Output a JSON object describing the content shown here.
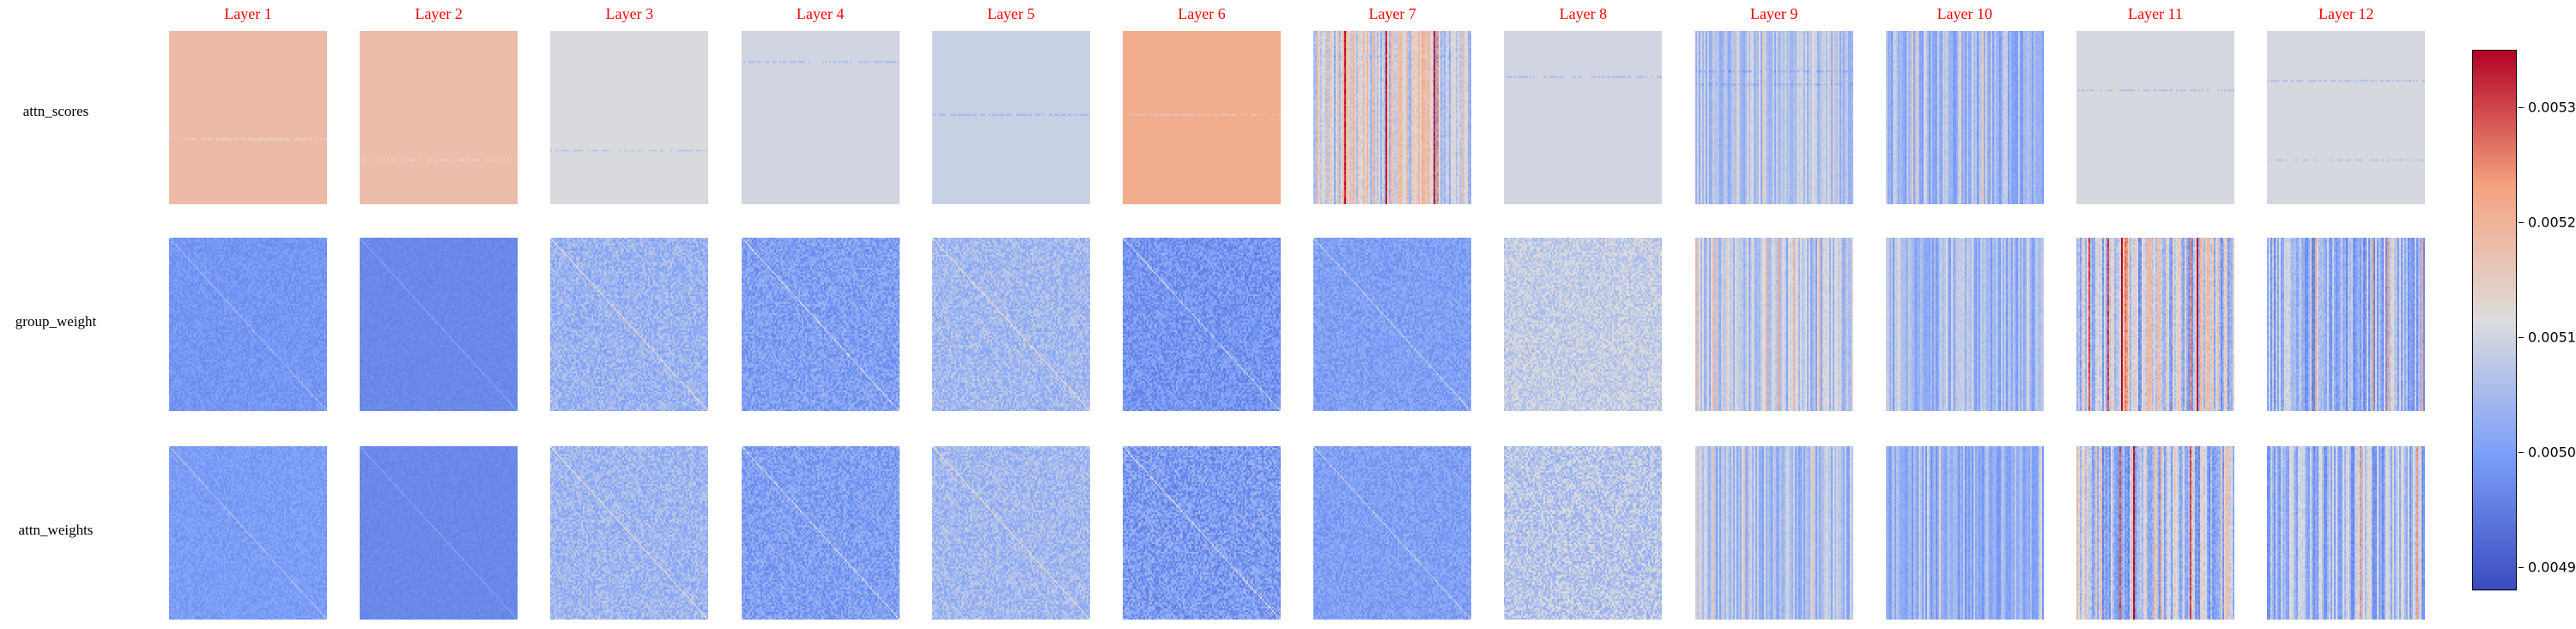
{
  "chart_data": {
    "type": "heatmap",
    "layers": [
      "Layer 1",
      "Layer 2",
      "Layer 3",
      "Layer 4",
      "Layer 5",
      "Layer 6",
      "Layer 7",
      "Layer 8",
      "Layer 9",
      "Layer 10",
      "Layer 11",
      "Layer 12"
    ],
    "rows": [
      "attn_scores",
      "group_weight",
      "attn_weights"
    ],
    "colormap": "coolwarm",
    "colorbar": {
      "vmin": 0.00488,
      "vmax": 0.00535,
      "ticks": [
        0.0049,
        0.005,
        0.0051,
        0.0052,
        0.0053
      ],
      "tick_labels": [
        "0.0049",
        "0.0050",
        "0.0051",
        "0.0052",
        "0.0053"
      ]
    },
    "cells": [
      [
        {
          "base": 0.005185,
          "spread": 1e-05,
          "stripes": "none",
          "diag": false,
          "hlines": 1
        },
        {
          "base": 0.00518,
          "spread": 1e-05,
          "stripes": "none",
          "diag": false,
          "hlines": 1
        },
        {
          "base": 0.00511,
          "spread": 1e-05,
          "stripes": "none",
          "diag": false,
          "hlines": 1
        },
        {
          "base": 0.0051,
          "spread": 1e-05,
          "stripes": "none",
          "diag": false,
          "hlines": 1
        },
        {
          "base": 0.00509,
          "spread": 1e-05,
          "stripes": "none",
          "diag": false,
          "hlines": 1
        },
        {
          "base": 0.005215,
          "spread": 1e-05,
          "stripes": "none",
          "diag": false,
          "hlines": 1
        },
        {
          "base": 0.00511,
          "spread": 9e-05,
          "stripes": "vertical",
          "diag": false,
          "hlines": 1
        },
        {
          "base": 0.0051,
          "spread": 1e-05,
          "stripes": "none",
          "diag": false,
          "hlines": 1
        },
        {
          "base": 0.00506,
          "spread": 4e-05,
          "stripes": "vertical",
          "diag": false,
          "hlines": 2
        },
        {
          "base": 0.00504,
          "spread": 5e-05,
          "stripes": "vertical",
          "diag": false,
          "hlines": 0
        },
        {
          "base": 0.005105,
          "spread": 1e-05,
          "stripes": "none",
          "diag": false,
          "hlines": 1
        },
        {
          "base": 0.005105,
          "spread": 1e-05,
          "stripes": "none",
          "diag": false,
          "hlines": 2
        }
      ],
      [
        {
          "base": 0.004985,
          "spread": 2e-05,
          "stripes": "noise",
          "diag": true,
          "hlines": 0
        },
        {
          "base": 0.004965,
          "spread": 1e-05,
          "stripes": "noise",
          "diag": true,
          "hlines": 0
        },
        {
          "base": 0.005035,
          "spread": 4e-05,
          "stripes": "noise",
          "diag": true,
          "hlines": 0
        },
        {
          "base": 0.005,
          "spread": 4e-05,
          "stripes": "noise",
          "diag": true,
          "hlines": 0
        },
        {
          "base": 0.005045,
          "spread": 4e-05,
          "stripes": "noise",
          "diag": true,
          "hlines": 0
        },
        {
          "base": 0.004985,
          "spread": 4e-05,
          "stripes": "noise",
          "diag": true,
          "hlines": 0
        },
        {
          "base": 0.005,
          "spread": 3e-05,
          "stripes": "noise",
          "diag": true,
          "hlines": 0
        },
        {
          "base": 0.005085,
          "spread": 4e-05,
          "stripes": "noise",
          "diag": false,
          "hlines": 0
        },
        {
          "base": 0.00507,
          "spread": 6e-05,
          "stripes": "vertical",
          "diag": false,
          "hlines": 0
        },
        {
          "base": 0.00504,
          "spread": 5e-05,
          "stripes": "vertical",
          "diag": false,
          "hlines": 0
        },
        {
          "base": 0.00508,
          "spread": 0.00011,
          "stripes": "vertical",
          "diag": false,
          "hlines": 0
        },
        {
          "base": 0.00504,
          "spread": 8e-05,
          "stripes": "vertical",
          "diag": false,
          "hlines": 0
        }
      ],
      [
        {
          "base": 0.004995,
          "spread": 2e-05,
          "stripes": "noise",
          "diag": true,
          "hlines": 0
        },
        {
          "base": 0.004965,
          "spread": 1e-05,
          "stripes": "noise",
          "diag": true,
          "hlines": 0
        },
        {
          "base": 0.00504,
          "spread": 4e-05,
          "stripes": "noise",
          "diag": true,
          "hlines": 0
        },
        {
          "base": 0.005,
          "spread": 4e-05,
          "stripes": "noise",
          "diag": true,
          "hlines": 0
        },
        {
          "base": 0.005045,
          "spread": 4e-05,
          "stripes": "noise",
          "diag": true,
          "hlines": 0
        },
        {
          "base": 0.004995,
          "spread": 5e-05,
          "stripes": "noise",
          "diag": true,
          "hlines": 0
        },
        {
          "base": 0.005,
          "spread": 3e-05,
          "stripes": "noise",
          "diag": true,
          "hlines": 0
        },
        {
          "base": 0.00507,
          "spread": 5e-05,
          "stripes": "noise",
          "diag": false,
          "hlines": 0
        },
        {
          "base": 0.005055,
          "spread": 5e-05,
          "stripes": "vertical",
          "diag": false,
          "hlines": 0
        },
        {
          "base": 0.00503,
          "spread": 5e-05,
          "stripes": "vertical",
          "diag": false,
          "hlines": 0
        },
        {
          "base": 0.00508,
          "spread": 0.00011,
          "stripes": "vertical",
          "diag": false,
          "hlines": 0
        },
        {
          "base": 0.00505,
          "spread": 8e-05,
          "stripes": "vertical",
          "diag": false,
          "hlines": 0
        }
      ]
    ]
  }
}
